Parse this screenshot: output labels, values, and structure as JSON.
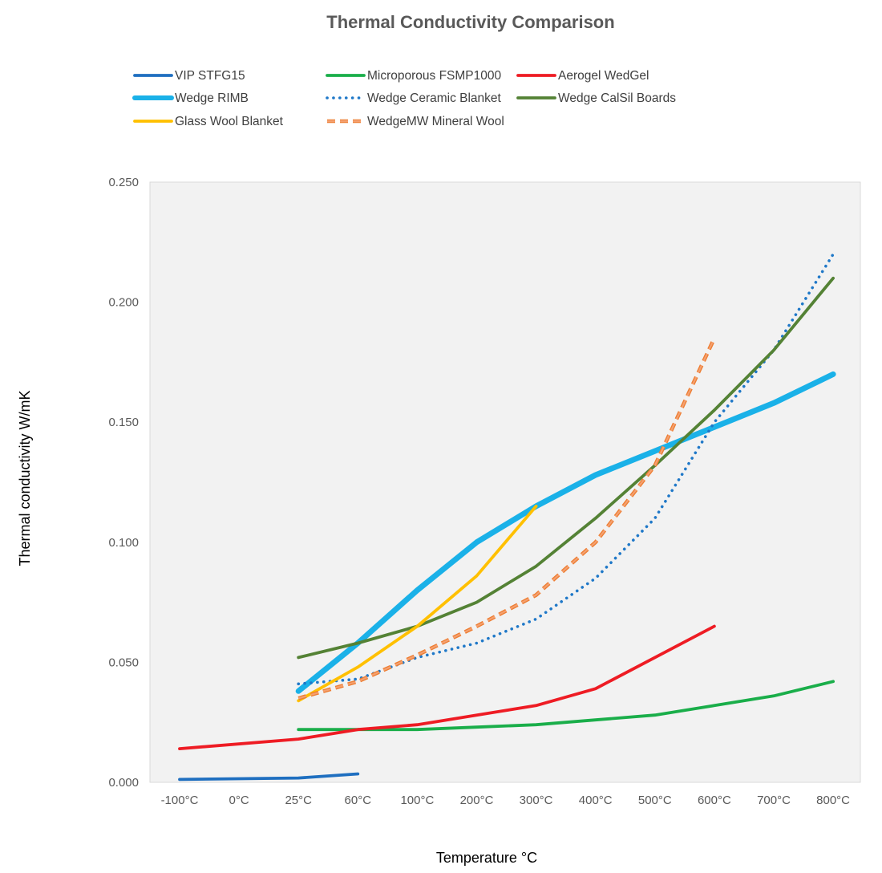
{
  "chart_data": {
    "type": "line",
    "title": "Thermal Conductivity Comparison",
    "xlabel": "Temperature °C",
    "ylabel": "Thermal conductivity W/mK",
    "categories": [
      "-100°C",
      "0°C",
      "25°C",
      "60°C",
      "100°C",
      "200°C",
      "300°C",
      "400°C",
      "500°C",
      "600°C",
      "700°C",
      "800°C"
    ],
    "ylim": [
      0,
      0.25
    ],
    "yticks": [
      "0.000",
      "0.050",
      "0.100",
      "0.150",
      "0.200",
      "0.250"
    ],
    "ytick_values": [
      0,
      0.05,
      0.1,
      0.15,
      0.2,
      0.25
    ],
    "grid": false,
    "legend_position": "top",
    "plot_background": "#f2f2f2",
    "series": [
      {
        "name": "VIP STFG15",
        "color": "#1f6fc0",
        "style": "solid",
        "values": [
          0.0012,
          null,
          0.0018,
          0.0035,
          null,
          null,
          null,
          null,
          null,
          null,
          null,
          null
        ]
      },
      {
        "name": "Microporous FSMP1000",
        "color": "#1aae4a",
        "style": "solid",
        "values": [
          null,
          null,
          0.022,
          null,
          0.022,
          0.023,
          0.024,
          0.026,
          0.028,
          0.032,
          0.036,
          0.042
        ]
      },
      {
        "name": "Aerogel WedGel",
        "color": "#ee1c24",
        "style": "solid",
        "values": [
          0.014,
          null,
          0.018,
          0.022,
          0.024,
          0.028,
          0.032,
          0.039,
          0.052,
          0.065,
          null,
          null
        ]
      },
      {
        "name": "Wedge RIMB",
        "color": "#1ab1e8",
        "style": "solid-thick",
        "values": [
          null,
          null,
          0.038,
          0.058,
          0.08,
          0.1,
          0.115,
          0.128,
          0.138,
          0.148,
          0.158,
          0.17
        ]
      },
      {
        "name": "Wedge Ceramic Blanket",
        "color": "#1f78c8",
        "style": "dotted",
        "values": [
          null,
          null,
          0.041,
          0.043,
          0.052,
          0.058,
          0.068,
          0.085,
          0.11,
          0.15,
          0.18,
          0.22
        ]
      },
      {
        "name": "Wedge CalSil Boards",
        "color": "#548235",
        "style": "solid",
        "values": [
          null,
          null,
          0.052,
          0.058,
          0.065,
          0.075,
          0.09,
          0.11,
          0.132,
          0.155,
          0.18,
          0.21
        ]
      },
      {
        "name": "Glass Wool Blanket",
        "color": "#ffc000",
        "style": "solid",
        "values": [
          null,
          null,
          0.034,
          0.048,
          0.065,
          0.086,
          0.115,
          null,
          null,
          null,
          null,
          null
        ]
      },
      {
        "name": "WedgeMW Mineral Wool",
        "color": "#f4a070",
        "edge_color": "#ed7d31",
        "style": "dashed",
        "values": [
          null,
          null,
          0.035,
          0.042,
          0.053,
          0.065,
          0.078,
          0.1,
          0.132,
          0.185,
          null,
          null
        ]
      }
    ]
  }
}
